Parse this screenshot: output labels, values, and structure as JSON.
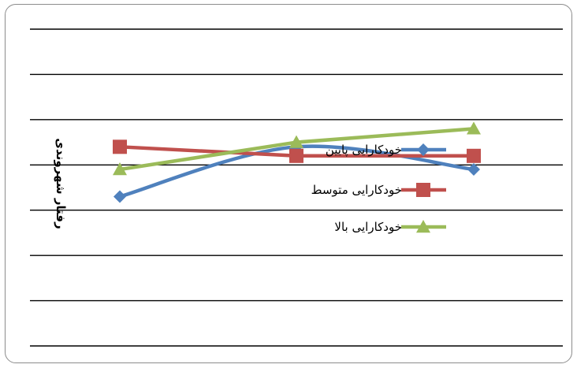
{
  "chart_data": {
    "type": "line",
    "title": "",
    "xlabel": "",
    "ylabel": "رفتار شهروندی",
    "categories": [
      "",
      "",
      ""
    ],
    "ylim": [
      0,
      7
    ],
    "grid": true,
    "legend_position": "right",
    "series": [
      {
        "name": "خودکارایی پایین",
        "values": [
          3.3,
          4.4,
          3.9
        ],
        "color": "#4f81bd",
        "marker": "diamond",
        "smooth": true
      },
      {
        "name": "خودکارایی متوسط",
        "values": [
          4.4,
          4.2,
          4.2
        ],
        "color": "#c0504d",
        "marker": "square",
        "smooth": false
      },
      {
        "name": "خودکارایی بالا",
        "values": [
          3.9,
          4.5,
          4.8
        ],
        "color": "#9bbb59",
        "marker": "triangle",
        "smooth": false
      }
    ]
  }
}
